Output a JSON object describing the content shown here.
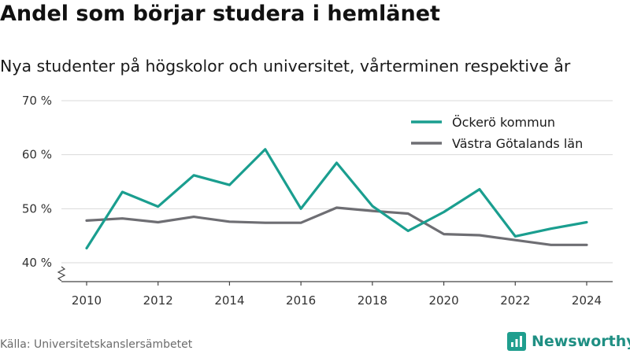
{
  "header": {
    "title": "Andel som börjar studera i hemlänet",
    "subtitle": "Nya studenter på högskolor och universitet, vårterminen respektive år"
  },
  "footer": {
    "source": "Källa: Universitetskanslersämbetet",
    "brand": "Newsworthy"
  },
  "chart_data": {
    "type": "line",
    "x": [
      2010,
      2011,
      2012,
      2013,
      2014,
      2015,
      2016,
      2017,
      2018,
      2019,
      2020,
      2021,
      2022,
      2023,
      2024
    ],
    "series": [
      {
        "name": "Öckerö kommun",
        "color": "#1a9e8f",
        "values": [
          42.7,
          53.1,
          50.4,
          56.2,
          54.4,
          61.0,
          50.0,
          58.5,
          50.5,
          45.9,
          49.4,
          53.6,
          44.9,
          46.3,
          47.5
        ]
      },
      {
        "name": "Västra Götalands län",
        "color": "#6e6e73",
        "values": [
          47.8,
          48.2,
          47.5,
          48.5,
          47.6,
          47.4,
          47.4,
          50.2,
          49.6,
          49.1,
          45.3,
          45.1,
          44.2,
          43.3,
          43.3
        ]
      }
    ],
    "ylim": [
      40,
      70
    ],
    "y_ticks": [
      40,
      50,
      60,
      70
    ],
    "y_tick_labels": [
      "40 %",
      "50 %",
      "60 %",
      "70 %"
    ],
    "x_ticks": [
      2010,
      2012,
      2014,
      2016,
      2018,
      2020,
      2022,
      2024
    ],
    "x_tick_labels": [
      "2010",
      "2012",
      "2014",
      "2016",
      "2018",
      "2020",
      "2022",
      "2024"
    ],
    "xlabel": "",
    "ylabel": "",
    "grid": true,
    "legend_position": "top-right",
    "y_axis_break": true
  }
}
